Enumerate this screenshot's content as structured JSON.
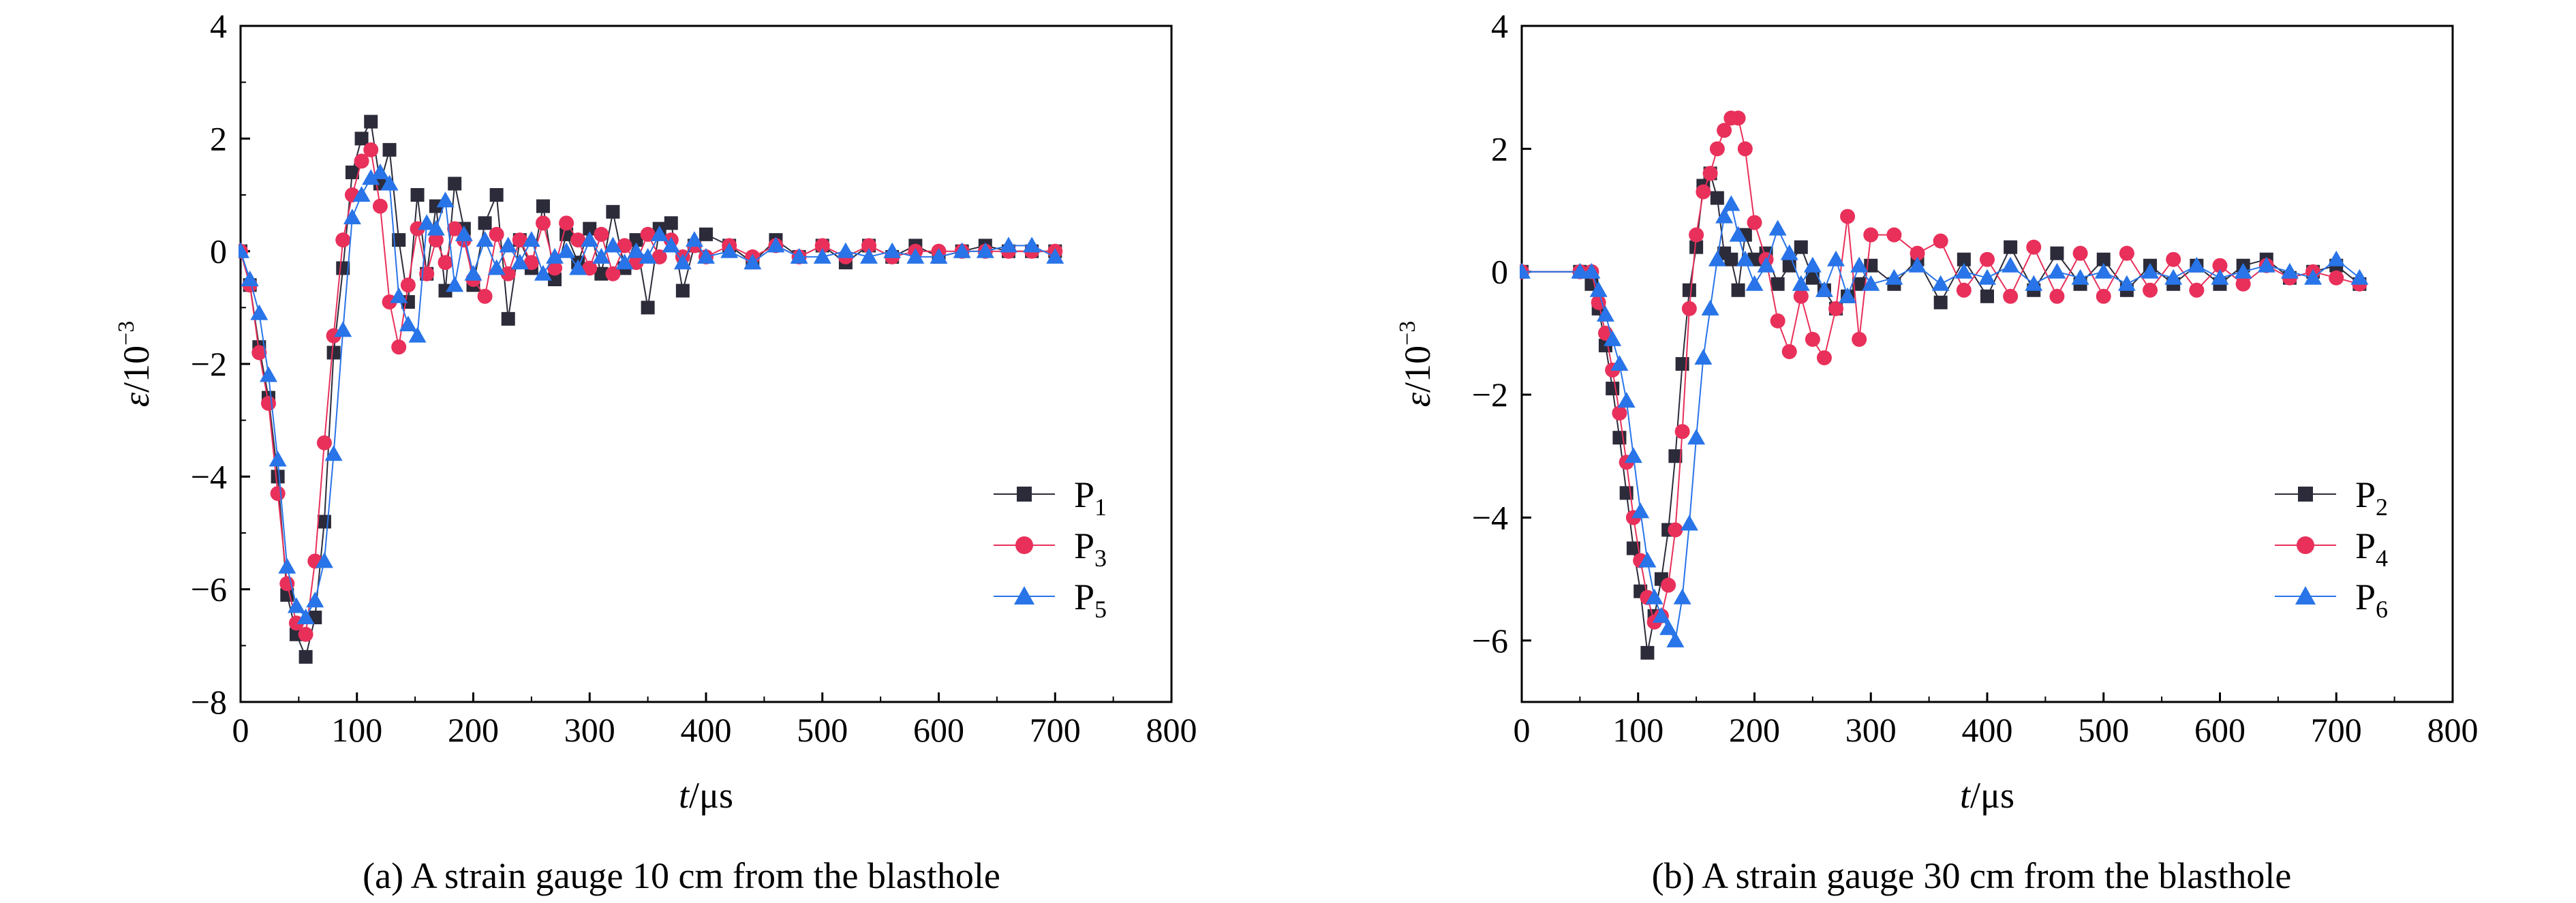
{
  "chart_data": [
    {
      "type": "line",
      "panel": "a",
      "caption": "(a) A strain gauge 10 cm from the blasthole",
      "xlabel_var": "t",
      "xlabel_unit": "/μs",
      "ylabel_var": "ε",
      "ylabel_unit": "/10",
      "ylabel_exp": "−3",
      "xlim": [
        0,
        800
      ],
      "ylim": [
        -8,
        4
      ],
      "xticks": [
        "0",
        "100",
        "200",
        "300",
        "400",
        "500",
        "600",
        "700",
        "800"
      ],
      "yticks": [
        "4",
        "2",
        "0",
        "−2",
        "−4",
        "−6",
        "−8"
      ],
      "legend_position": "lower-right",
      "series": [
        {
          "name": "P",
          "sub": "1",
          "marker": "square",
          "color": "#2b2b3a",
          "x": [
            0,
            8,
            16,
            24,
            32,
            40,
            48,
            56,
            64,
            72,
            80,
            88,
            96,
            104,
            112,
            120,
            128,
            136,
            144,
            152,
            160,
            168,
            176,
            184,
            192,
            200,
            210,
            220,
            230,
            240,
            250,
            260,
            270,
            280,
            290,
            300,
            310,
            320,
            330,
            340,
            350,
            360,
            370,
            380,
            390,
            400,
            420,
            440,
            460,
            480,
            500,
            520,
            540,
            560,
            580,
            600,
            620,
            640,
            660,
            680,
            700
          ],
          "y": [
            0,
            -0.6,
            -1.7,
            -2.6,
            -4.0,
            -6.1,
            -6.8,
            -7.2,
            -6.5,
            -4.8,
            -1.8,
            -0.3,
            1.4,
            2.0,
            2.3,
            1.2,
            1.8,
            0.2,
            -0.9,
            1.0,
            -0.4,
            0.8,
            -0.7,
            1.2,
            0.4,
            -0.6,
            0.5,
            1.0,
            -1.2,
            0.2,
            -0.3,
            0.8,
            -0.5,
            0.3,
            -0.2,
            0.4,
            -0.4,
            0.7,
            -0.3,
            0.2,
            -1.0,
            0.4,
            0.5,
            -0.7,
            0.1,
            0.3,
            0.1,
            -0.2,
            0.2,
            -0.1,
            0.1,
            -0.2,
            0.1,
            -0.1,
            0.1,
            -0.1,
            0.0,
            0.1,
            0.0,
            0.0,
            0.0
          ]
        },
        {
          "name": "P",
          "sub": "3",
          "marker": "circle",
          "color": "#e8305a",
          "x": [
            0,
            8,
            16,
            24,
            32,
            40,
            48,
            56,
            64,
            72,
            80,
            88,
            96,
            104,
            112,
            120,
            128,
            136,
            144,
            152,
            160,
            168,
            176,
            184,
            192,
            200,
            210,
            220,
            230,
            240,
            250,
            260,
            270,
            280,
            290,
            300,
            310,
            320,
            330,
            340,
            350,
            360,
            370,
            380,
            390,
            400,
            420,
            440,
            460,
            480,
            500,
            520,
            540,
            560,
            580,
            600,
            620,
            640,
            660,
            680,
            700
          ],
          "y": [
            0,
            -0.6,
            -1.8,
            -2.7,
            -4.3,
            -5.9,
            -6.6,
            -6.8,
            -5.5,
            -3.4,
            -1.5,
            0.2,
            1.0,
            1.6,
            1.8,
            0.8,
            -0.9,
            -1.7,
            -0.6,
            0.4,
            -0.4,
            0.2,
            -0.2,
            0.4,
            0.2,
            -0.5,
            -0.8,
            0.3,
            -0.4,
            0.2,
            -0.2,
            0.5,
            -0.3,
            0.5,
            0.2,
            -0.3,
            0.3,
            -0.4,
            0.1,
            -0.2,
            0.3,
            -0.1,
            0.2,
            -0.1,
            0.1,
            -0.1,
            0.1,
            -0.1,
            0.1,
            -0.1,
            0.1,
            -0.1,
            0.1,
            -0.1,
            0.0,
            0.0,
            0.0,
            0.0,
            0.0,
            0.0,
            0.0
          ]
        },
        {
          "name": "P",
          "sub": "5",
          "marker": "triangle",
          "color": "#2874e8",
          "x": [
            0,
            8,
            16,
            24,
            32,
            40,
            48,
            56,
            64,
            72,
            80,
            88,
            96,
            104,
            112,
            120,
            128,
            136,
            144,
            152,
            160,
            168,
            176,
            184,
            192,
            200,
            210,
            220,
            230,
            240,
            250,
            260,
            270,
            280,
            290,
            300,
            310,
            320,
            330,
            340,
            350,
            360,
            370,
            380,
            390,
            400,
            420,
            440,
            460,
            480,
            500,
            520,
            540,
            560,
            580,
            600,
            620,
            640,
            660,
            680,
            700
          ],
          "y": [
            0,
            -0.5,
            -1.1,
            -2.2,
            -3.7,
            -5.6,
            -6.3,
            -6.5,
            -6.2,
            -5.5,
            -3.6,
            -1.4,
            0.6,
            1.0,
            1.3,
            1.4,
            1.2,
            -0.8,
            -1.3,
            -1.5,
            0.5,
            0.4,
            0.9,
            -0.6,
            0.3,
            -0.4,
            0.2,
            -0.3,
            0.1,
            -0.2,
            0.2,
            -0.4,
            -0.1,
            0.0,
            -0.3,
            0.2,
            -0.1,
            0.1,
            -0.2,
            0.0,
            -0.1,
            0.3,
            0.1,
            -0.2,
            0.2,
            -0.1,
            0.0,
            -0.2,
            0.1,
            -0.1,
            -0.1,
            0.0,
            -0.1,
            0.0,
            -0.1,
            -0.1,
            0.0,
            0.0,
            0.1,
            0.1,
            -0.1
          ]
        }
      ]
    },
    {
      "type": "line",
      "panel": "b",
      "caption": "(b) A strain gauge 30 cm from the blasthole",
      "xlabel_var": "t",
      "xlabel_unit": "/μs",
      "ylabel_var": "ε",
      "ylabel_unit": "/10",
      "ylabel_exp": "−3",
      "xlim": [
        0,
        800
      ],
      "ylim": [
        -7,
        4
      ],
      "xticks": [
        "0",
        "100",
        "200",
        "300",
        "400",
        "500",
        "600",
        "700",
        "800"
      ],
      "yticks": [
        "4",
        "2",
        "0",
        "−2",
        "−4",
        "−6"
      ],
      "legend_position": "lower-right",
      "series": [
        {
          "name": "P",
          "sub": "2",
          "marker": "square",
          "color": "#2b2b3a",
          "x": [
            0,
            50,
            60,
            66,
            72,
            78,
            84,
            90,
            96,
            102,
            108,
            114,
            120,
            126,
            132,
            138,
            144,
            150,
            156,
            162,
            168,
            174,
            180,
            186,
            192,
            200,
            210,
            220,
            230,
            240,
            250,
            260,
            270,
            280,
            290,
            300,
            320,
            340,
            360,
            380,
            400,
            420,
            440,
            460,
            480,
            500,
            520,
            540,
            560,
            580,
            600,
            620,
            640,
            660,
            680,
            700,
            720
          ],
          "y": [
            0,
            0,
            -0.2,
            -0.6,
            -1.2,
            -1.9,
            -2.7,
            -3.6,
            -4.5,
            -5.2,
            -6.2,
            -5.6,
            -5.0,
            -4.2,
            -3.0,
            -1.5,
            -0.3,
            0.4,
            1.4,
            1.6,
            1.2,
            0.3,
            0.2,
            -0.3,
            0.6,
            0.2,
            0.3,
            -0.2,
            0.1,
            0.4,
            -0.1,
            -0.3,
            -0.6,
            -0.4,
            -0.2,
            0.1,
            -0.2,
            0.2,
            -0.5,
            0.2,
            -0.4,
            0.4,
            -0.3,
            0.3,
            -0.2,
            0.2,
            -0.3,
            0.1,
            -0.2,
            0.1,
            -0.2,
            0.1,
            0.2,
            -0.1,
            0.0,
            0.1,
            -0.2
          ]
        },
        {
          "name": "P",
          "sub": "4",
          "marker": "circle",
          "color": "#e8305a",
          "x": [
            0,
            50,
            60,
            66,
            72,
            78,
            84,
            90,
            96,
            102,
            108,
            114,
            120,
            126,
            132,
            138,
            144,
            150,
            156,
            162,
            168,
            174,
            180,
            186,
            192,
            200,
            210,
            220,
            230,
            240,
            250,
            260,
            270,
            280,
            290,
            300,
            320,
            340,
            360,
            380,
            400,
            420,
            440,
            460,
            480,
            500,
            520,
            540,
            560,
            580,
            600,
            620,
            640,
            660,
            680,
            700,
            720
          ],
          "y": [
            0,
            0,
            0,
            -0.5,
            -1.0,
            -1.6,
            -2.3,
            -3.1,
            -4.0,
            -4.7,
            -5.3,
            -5.7,
            -5.6,
            -5.1,
            -4.2,
            -2.6,
            -0.6,
            0.6,
            1.3,
            1.6,
            2.0,
            2.3,
            2.5,
            2.5,
            2.0,
            0.8,
            0.2,
            -0.8,
            -1.3,
            -0.4,
            -1.1,
            -1.4,
            -0.6,
            0.9,
            -1.1,
            0.6,
            0.6,
            0.3,
            0.5,
            -0.3,
            0.2,
            -0.4,
            0.4,
            -0.4,
            0.3,
            -0.4,
            0.3,
            -0.3,
            0.2,
            -0.3,
            0.1,
            -0.2,
            0.1,
            -0.1,
            0.0,
            -0.1,
            -0.2
          ]
        },
        {
          "name": "P",
          "sub": "6",
          "marker": "triangle",
          "color": "#2874e8",
          "x": [
            0,
            50,
            60,
            66,
            72,
            78,
            84,
            90,
            96,
            102,
            108,
            114,
            120,
            126,
            132,
            138,
            144,
            150,
            156,
            162,
            168,
            174,
            180,
            186,
            192,
            200,
            210,
            220,
            230,
            240,
            250,
            260,
            270,
            280,
            290,
            300,
            320,
            340,
            360,
            380,
            400,
            420,
            440,
            460,
            480,
            500,
            520,
            540,
            560,
            580,
            600,
            620,
            640,
            660,
            680,
            700,
            720
          ],
          "y": [
            0,
            0,
            0,
            -0.3,
            -0.7,
            -1.1,
            -1.5,
            -2.1,
            -3.0,
            -3.9,
            -4.7,
            -5.3,
            -5.6,
            -5.8,
            -6.0,
            -5.3,
            -4.1,
            -2.7,
            -1.4,
            -0.6,
            0.2,
            0.9,
            1.1,
            0.6,
            0.2,
            -0.2,
            0.1,
            0.7,
            0.3,
            -0.2,
            0.1,
            -0.3,
            0.2,
            -0.4,
            0.1,
            -0.2,
            -0.1,
            0.1,
            -0.2,
            0.0,
            -0.1,
            0.1,
            -0.2,
            0.0,
            -0.1,
            0.0,
            -0.2,
            0.0,
            -0.1,
            0.1,
            -0.1,
            0.0,
            0.1,
            0.0,
            -0.1,
            0.2,
            -0.1
          ]
        }
      ]
    }
  ]
}
